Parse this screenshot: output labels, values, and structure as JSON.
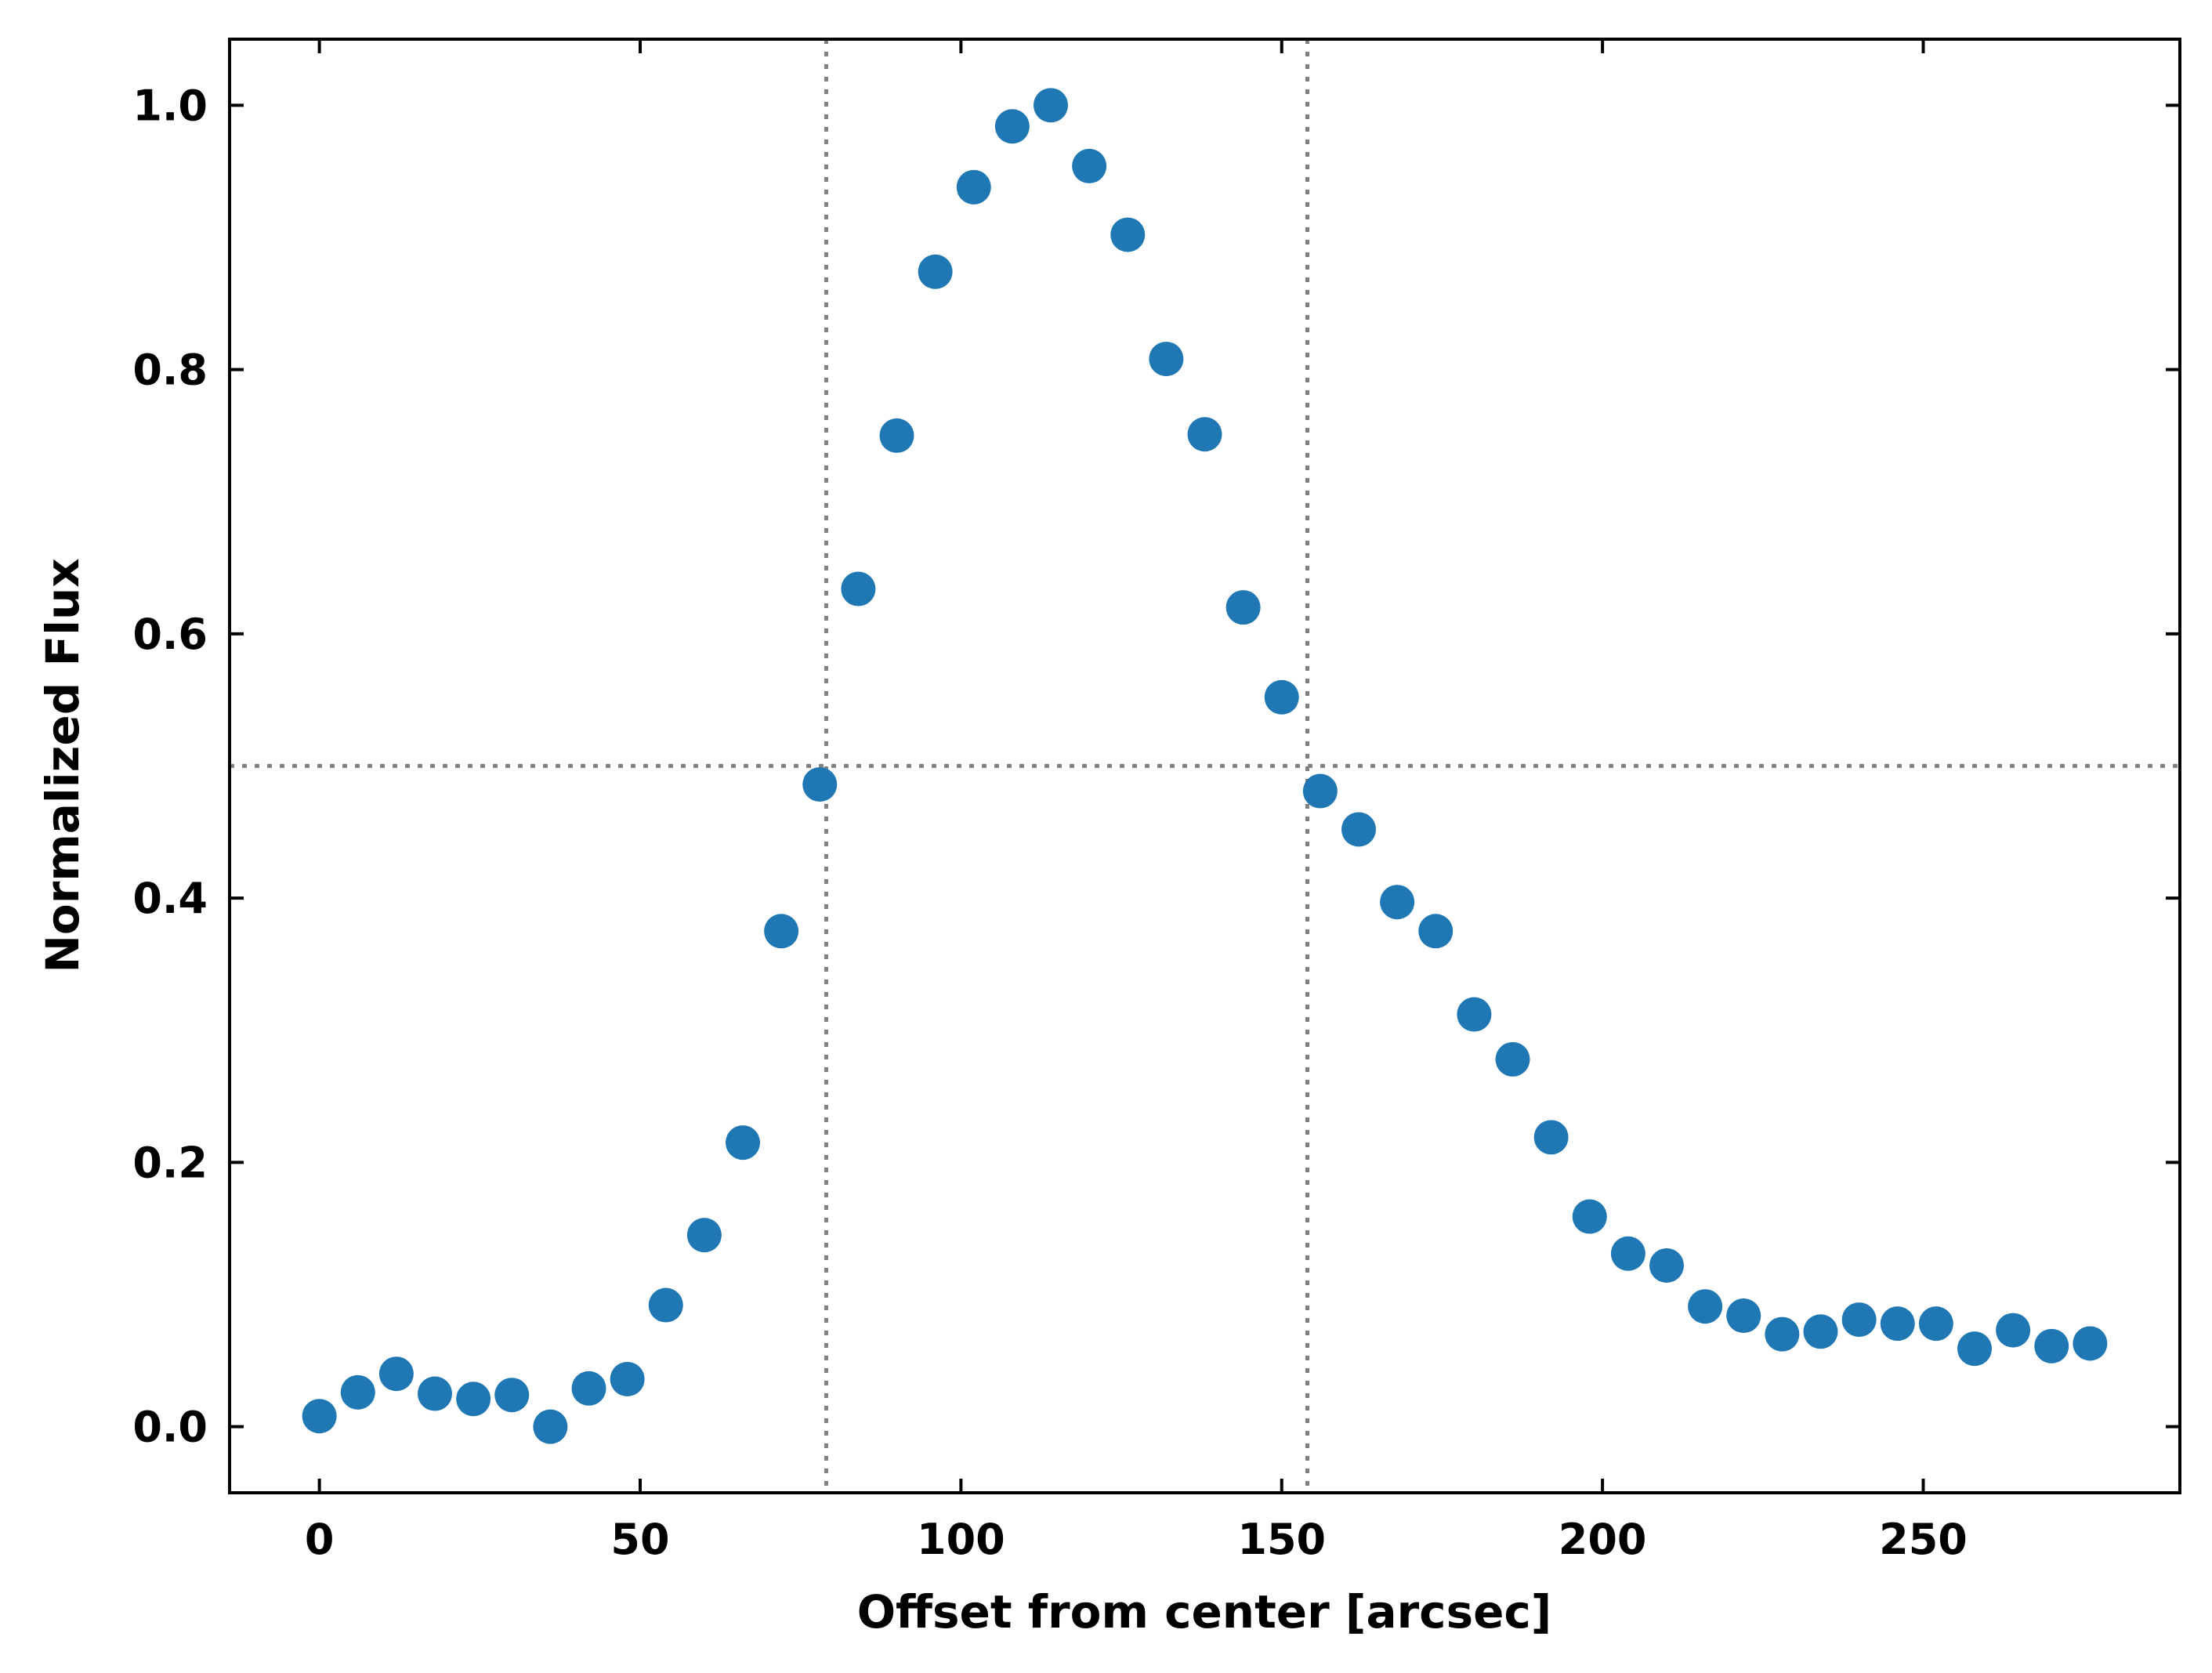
{
  "chart_data": {
    "type": "scatter",
    "xlabel": "Offset from center [arcsec]",
    "ylabel": "Normalized Flux",
    "xlim": [
      -14,
      290
    ],
    "ylim": [
      -0.05,
      1.05
    ],
    "xticks": [
      0,
      50,
      100,
      150,
      200,
      250
    ],
    "yticks": [
      0.0,
      0.2,
      0.4,
      0.6,
      0.8,
      1.0
    ],
    "xtick_labels": [
      "0",
      "50",
      "100",
      "150",
      "200",
      "250"
    ],
    "ytick_labels": [
      "0.0",
      "0.2",
      "0.4",
      "0.6",
      "0.8",
      "1.0"
    ],
    "grid": false,
    "marker_color": "#1f77b4",
    "reference_line_color": "#808080",
    "vlines": [
      79,
      154
    ],
    "hlines": [
      0.5
    ],
    "series": [
      {
        "x": [
          0,
          6,
          12,
          18,
          24,
          30,
          36,
          42,
          48,
          54,
          60,
          66,
          72,
          78,
          84,
          90,
          96,
          102,
          108,
          114,
          120,
          126,
          132,
          138,
          144,
          150,
          156,
          162,
          168,
          174,
          180,
          186,
          192,
          198,
          204,
          210,
          216,
          222,
          228,
          234,
          240,
          246,
          252,
          258,
          264,
          270,
          276
        ],
        "y": [
          0.008,
          0.026,
          0.04,
          0.025,
          0.021,
          0.024,
          0.0,
          0.029,
          0.036,
          0.092,
          0.145,
          0.215,
          0.375,
          0.486,
          0.634,
          0.75,
          0.874,
          0.938,
          0.984,
          1.0,
          0.954,
          0.902,
          0.808,
          0.751,
          0.62,
          0.552,
          0.481,
          0.452,
          0.397,
          0.375,
          0.312,
          0.278,
          0.219,
          0.159,
          0.131,
          0.122,
          0.091,
          0.084,
          0.07,
          0.072,
          0.081,
          0.078,
          0.078,
          0.059,
          0.073,
          0.061,
          0.063
        ]
      }
    ]
  }
}
